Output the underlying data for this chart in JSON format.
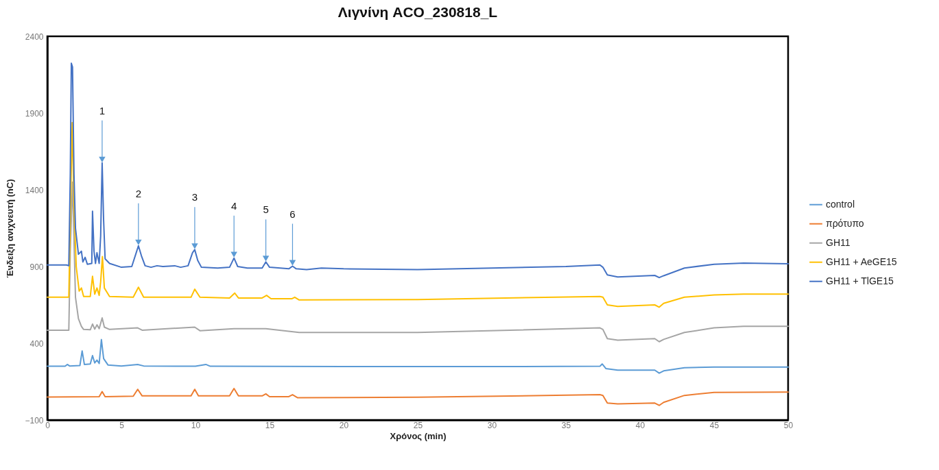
{
  "chart_data": {
    "type": "line",
    "title": "Λιγνίνη ACO_230818_L",
    "xlabel": "Χρόνος (min)",
    "ylabel": "Ένδειξη  ανιχνευτή (nC)",
    "xlim": [
      0,
      50
    ],
    "xticks": [
      0,
      5,
      10,
      15,
      20,
      25,
      30,
      35,
      40,
      45,
      50
    ],
    "ylim": [
      -100,
      2400
    ],
    "yticks": [
      -100,
      400,
      900,
      1400,
      1900,
      2400
    ],
    "grid": false,
    "legend": "right",
    "marker": "none",
    "line_style": "solid",
    "series": [
      {
        "name": "control",
        "color": "#5b9bd5",
        "x": [
          0,
          1.2,
          1.35,
          1.5,
          2.2,
          2.35,
          2.5,
          2.9,
          3.05,
          3.2,
          3.35,
          3.5,
          3.65,
          3.8,
          4.1,
          5,
          6.1,
          6.5,
          10,
          10.7,
          11,
          20,
          30,
          37.3,
          37.45,
          37.7,
          38.5,
          41,
          41.3,
          41.6,
          43,
          45,
          50
        ],
        "values": [
          250,
          250,
          262,
          252,
          255,
          350,
          262,
          265,
          320,
          272,
          290,
          268,
          424,
          300,
          258,
          252,
          262,
          252,
          250,
          262,
          250,
          248,
          248,
          250,
          265,
          235,
          225,
          225,
          205,
          220,
          240,
          245,
          245
        ]
      },
      {
        "name": "πρότυπο",
        "color": "#ed7d31",
        "x": [
          0,
          3.5,
          3.7,
          3.9,
          5.8,
          6.1,
          6.4,
          9.7,
          9.95,
          10.2,
          12.3,
          12.6,
          12.9,
          14.5,
          14.75,
          15,
          16.3,
          16.55,
          16.9,
          25,
          37.3,
          37.5,
          37.8,
          38.5,
          41,
          41.3,
          41.6,
          43,
          45,
          50
        ],
        "values": [
          50,
          52,
          85,
          52,
          55,
          100,
          57,
          57,
          100,
          57,
          57,
          105,
          57,
          57,
          70,
          52,
          52,
          65,
          45,
          48,
          65,
          60,
          10,
          5,
          10,
          -5,
          15,
          60,
          80,
          82
        ]
      },
      {
        "name": "GH11",
        "color": "#a5a5a5",
        "x": [
          0,
          1.45,
          1.55,
          1.7,
          1.9,
          2.1,
          2.3,
          2.45,
          2.9,
          3.05,
          3.2,
          3.35,
          3.5,
          3.7,
          3.85,
          4.2,
          6.1,
          6.4,
          9.95,
          10.3,
          12.6,
          14.75,
          17,
          25,
          37.3,
          37.5,
          37.8,
          38.5,
          41,
          41.3,
          41.6,
          43,
          45,
          47,
          50
        ],
        "values": [
          485,
          485,
          1000,
          1450,
          700,
          560,
          510,
          490,
          488,
          525,
          492,
          520,
          495,
          565,
          505,
          490,
          500,
          485,
          505,
          482,
          495,
          495,
          470,
          470,
          500,
          490,
          430,
          420,
          430,
          410,
          425,
          470,
          500,
          510,
          510
        ]
      },
      {
        "name": "GH11 + AeGE15",
        "color": "#ffc000",
        "x": [
          0,
          1.45,
          1.55,
          1.68,
          1.8,
          1.95,
          2.15,
          2.3,
          2.45,
          2.9,
          3.05,
          3.2,
          3.35,
          3.5,
          3.6,
          3.72,
          3.85,
          4.2,
          5.8,
          6.15,
          6.5,
          9.7,
          9.95,
          10.3,
          12.3,
          12.65,
          12.9,
          14.5,
          14.8,
          15.1,
          16.5,
          16.7,
          17,
          25,
          37.3,
          37.5,
          37.8,
          38.5,
          41,
          41.3,
          41.6,
          43,
          45,
          47,
          50
        ],
        "values": [
          700,
          700,
          1200,
          1838,
          1300,
          900,
          740,
          760,
          705,
          705,
          836,
          720,
          760,
          712,
          800,
          965,
          760,
          705,
          700,
          765,
          700,
          700,
          752,
          700,
          695,
          727,
          695,
          695,
          712,
          690,
          690,
          700,
          682,
          685,
          705,
          700,
          650,
          640,
          650,
          635,
          660,
          700,
          715,
          720,
          720
        ]
      },
      {
        "name": "GH11 + TlGE15",
        "color": "#4472c4",
        "x": [
          0,
          1.3,
          1.45,
          1.55,
          1.62,
          1.7,
          1.8,
          1.9,
          2.1,
          2.3,
          2.4,
          2.55,
          2.7,
          3.0,
          3.05,
          3.15,
          3.25,
          3.35,
          3.5,
          3.6,
          3.7,
          3.8,
          3.9,
          4.2,
          5,
          5.7,
          6.0,
          6.15,
          6.35,
          6.6,
          7,
          7.4,
          7.8,
          8.6,
          9,
          9.5,
          9.8,
          9.95,
          10.15,
          10.4,
          11.5,
          12.3,
          12.6,
          12.85,
          13.5,
          14.5,
          14.75,
          15,
          16.3,
          16.55,
          16.8,
          17.5,
          18.5,
          20,
          25,
          30,
          35,
          37.3,
          37.5,
          37.8,
          38.5,
          41,
          41.3,
          41.6,
          43,
          45,
          47,
          50
        ],
        "values": [
          910,
          910,
          905,
          1500,
          2225,
          2200,
          1500,
          1150,
          980,
          1000,
          930,
          960,
          915,
          920,
          1260,
          1000,
          920,
          990,
          920,
          1100,
          1575,
          1200,
          950,
          920,
          895,
          900,
          990,
          1035,
          970,
          905,
          895,
          905,
          900,
          905,
          895,
          905,
          990,
          1010,
          940,
          895,
          890,
          895,
          955,
          900,
          890,
          890,
          930,
          895,
          885,
          902,
          885,
          880,
          890,
          885,
          880,
          890,
          900,
          910,
          895,
          845,
          832,
          842,
          828,
          840,
          890,
          915,
          922,
          918
        ]
      }
    ],
    "annotations": [
      {
        "text": "1",
        "x": 3.7,
        "y": 1575
      },
      {
        "text": "2",
        "x": 6.15,
        "y": 1035
      },
      {
        "text": "3",
        "x": 9.95,
        "y": 1010
      },
      {
        "text": "4",
        "x": 12.6,
        "y": 955
      },
      {
        "text": "5",
        "x": 14.75,
        "y": 930
      },
      {
        "text": "6",
        "x": 16.55,
        "y": 902
      }
    ]
  }
}
